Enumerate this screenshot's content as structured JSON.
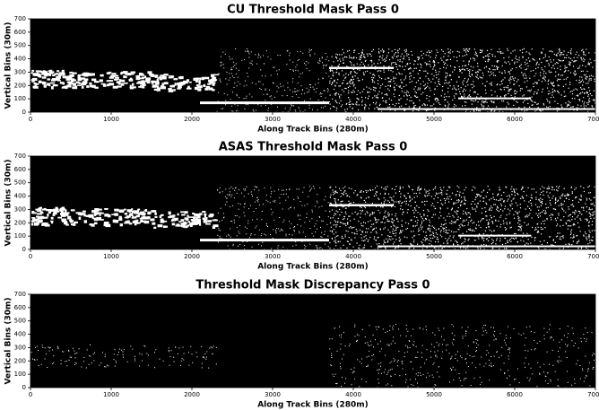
{
  "chart_data": [
    {
      "type": "image",
      "title": "CU Threshold Mask Pass 0",
      "xlabel": "Along Track Bins (280m)",
      "ylabel": "Vertical Bins (30m)",
      "xlim": [
        0,
        7000
      ],
      "ylim": [
        0,
        700
      ],
      "xticks": [
        0,
        1000,
        2000,
        3000,
        4000,
        5000,
        6000,
        7000
      ],
      "yticks": [
        0,
        100,
        200,
        300,
        400,
        500,
        600,
        700
      ]
    },
    {
      "type": "image",
      "title": "ASAS Threshold Mask Pass 0",
      "xlabel": "Along Track Bins (280m)",
      "ylabel": "Vertical Bins (30m)",
      "xlim": [
        0,
        7000
      ],
      "ylim": [
        0,
        700
      ],
      "xticks": [
        0,
        1000,
        2000,
        3000,
        4000,
        5000,
        6000,
        7000
      ],
      "yticks": [
        0,
        100,
        200,
        300,
        400,
        500,
        600,
        700
      ]
    },
    {
      "type": "image",
      "title": "Threshold Mask Discrepancy Pass 0",
      "xlabel": "Along Track Bins (280m)",
      "ylabel": "Vertical Bins (30m)",
      "xlim": [
        0,
        7000
      ],
      "ylim": [
        0,
        700
      ],
      "xticks": [
        0,
        1000,
        2000,
        3000,
        4000,
        5000,
        6000,
        7000
      ],
      "yticks": [
        0,
        100,
        200,
        300,
        400,
        500,
        600,
        700
      ]
    }
  ]
}
